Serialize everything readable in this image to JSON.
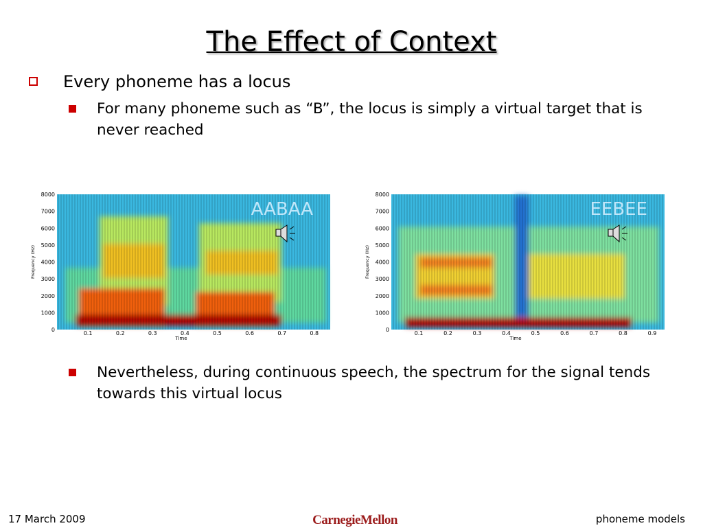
{
  "title": "The Effect of Context",
  "bullets": [
    {
      "text": "Every phoneme has a locus",
      "sub": [
        "For many phoneme such as “B”, the locus is simply a virtual target that is never reached",
        "Nevertheless, during continuous speech, the spectrum for the signal tends towards this virtual locus"
      ]
    }
  ],
  "figures": [
    {
      "label": "AABAA",
      "ylabel": "Frequency (Hz)",
      "xlabel": "Time",
      "yticks": [
        0,
        1000,
        2000,
        3000,
        4000,
        5000,
        6000,
        7000,
        8000
      ],
      "xticks": [
        0.1,
        0.2,
        0.3,
        0.4,
        0.5,
        0.6,
        0.7,
        0.8
      ]
    },
    {
      "label": "EEBEE",
      "ylabel": "Frequency (Hz)",
      "xlabel": "Time",
      "yticks": [
        0,
        1000,
        2000,
        3000,
        4000,
        5000,
        6000,
        7000,
        8000
      ],
      "xticks": [
        0.1,
        0.2,
        0.3,
        0.4,
        0.5,
        0.6,
        0.7,
        0.8,
        0.9
      ]
    }
  ],
  "footer": {
    "date": "17  March 2009",
    "logo": "CarnegieMellon",
    "topic": "phoneme models"
  }
}
